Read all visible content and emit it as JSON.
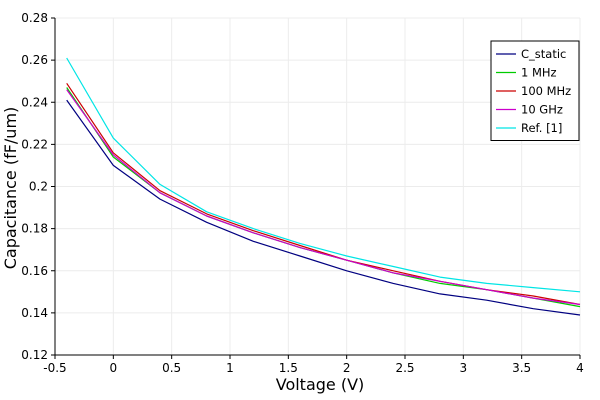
{
  "chart_data": {
    "type": "line",
    "title": "",
    "xlabel": "Voltage (V)",
    "ylabel": "Capacitance (fF/um)",
    "xlim": [
      -0.5,
      4
    ],
    "ylim": [
      0.12,
      0.28
    ],
    "xticks": [
      -0.5,
      0,
      0.5,
      1,
      1.5,
      2,
      2.5,
      3,
      3.5,
      4
    ],
    "xtick_labels": [
      "-0.5",
      "0",
      "0.5",
      "1",
      "1.5",
      "2",
      "2.5",
      "3",
      "3.5",
      "4"
    ],
    "yticks": [
      0.12,
      0.14,
      0.16,
      0.18,
      0.2,
      0.22,
      0.24,
      0.26,
      0.28
    ],
    "ytick_labels": [
      "0.12",
      "0.14",
      "0.16",
      "0.18",
      "0.2",
      "0.22",
      "0.24",
      "0.26",
      "0.28"
    ],
    "grid": true,
    "legend_position": "top-right",
    "x": [
      -0.4,
      0,
      0.4,
      0.8,
      1.2,
      1.6,
      2.0,
      2.4,
      2.8,
      3.2,
      3.6,
      4.0
    ],
    "series": [
      {
        "name": "C_static",
        "color": "#000080",
        "values": [
          0.241,
          0.21,
          0.194,
          0.183,
          0.174,
          0.167,
          0.16,
          0.154,
          0.149,
          0.146,
          0.142,
          0.139
        ]
      },
      {
        "name": "1 MHz",
        "color": "#00cc00",
        "values": [
          0.247,
          0.214,
          0.197,
          0.186,
          0.178,
          0.171,
          0.165,
          0.159,
          0.154,
          0.151,
          0.147,
          0.143
        ]
      },
      {
        "name": "100 MHz",
        "color": "#cc0000",
        "values": [
          0.249,
          0.216,
          0.198,
          0.187,
          0.179,
          0.172,
          0.165,
          0.16,
          0.155,
          0.151,
          0.148,
          0.144
        ]
      },
      {
        "name": "10 GHz",
        "color": "#cc00cc",
        "values": [
          0.246,
          0.215,
          0.197,
          0.186,
          0.178,
          0.171,
          0.165,
          0.159,
          0.155,
          0.151,
          0.147,
          0.144
        ]
      },
      {
        "name": "Ref. [1]",
        "color": "#00e5e5",
        "values": [
          0.261,
          0.223,
          0.201,
          0.188,
          0.18,
          0.173,
          0.167,
          0.162,
          0.157,
          0.154,
          0.152,
          0.15
        ]
      }
    ]
  }
}
